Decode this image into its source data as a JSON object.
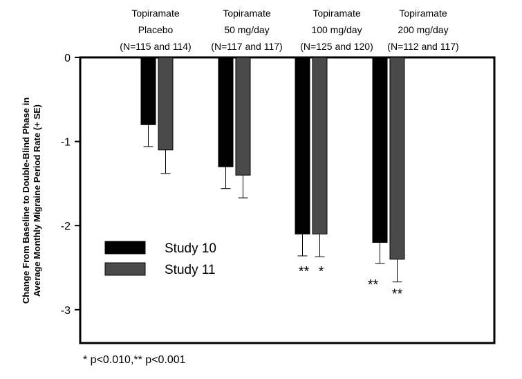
{
  "chart_data": {
    "type": "bar",
    "title": "",
    "xlabel": "",
    "ylabel": "Change From Baseline to Double-Blind Phase in Average Monthly Migraine Period Rate (+ SE)",
    "ylim": [
      -3.4,
      0
    ],
    "yticks": [
      0,
      -1,
      -2,
      -3
    ],
    "grid": false,
    "legend_position": "bottom-left",
    "categories": [
      [
        "Topiramate",
        "Placebo",
        "(N=115 and 114)"
      ],
      [
        "Topiramate",
        "50 mg/day",
        "(N=117 and 117)"
      ],
      [
        "Topiramate",
        "100 mg/day",
        "(N=125 and 120)"
      ],
      [
        "Topiramate",
        "200 mg/day",
        "(N=112 and 117)"
      ]
    ],
    "series": [
      {
        "name": "Study 10",
        "color": "#000000",
        "values": [
          -0.8,
          -1.3,
          -2.1,
          -2.2
        ],
        "se": [
          0.26,
          0.26,
          0.26,
          0.25
        ],
        "annotations": [
          "",
          "",
          "**",
          "**"
        ]
      },
      {
        "name": "Study 11",
        "color": "#4a4a4a",
        "values": [
          -1.1,
          -1.4,
          -2.1,
          -2.4
        ],
        "se": [
          0.28,
          0.27,
          0.27,
          0.27
        ],
        "annotations": [
          "",
          "",
          "*",
          "**"
        ]
      }
    ],
    "footnote": "* p<0.010,** p<0.001"
  }
}
